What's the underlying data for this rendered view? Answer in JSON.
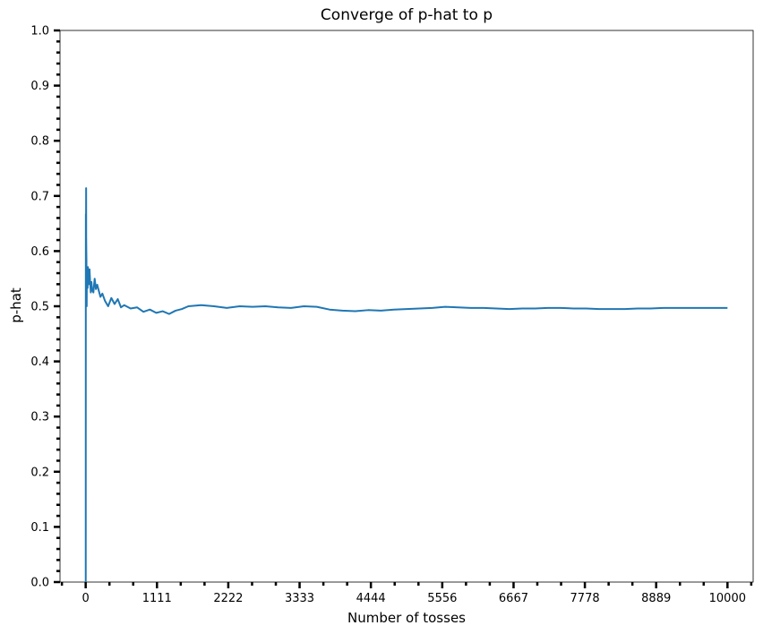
{
  "chart_data": {
    "type": "line",
    "title": "Converge of p-hat to p",
    "xlabel": "Number of tosses",
    "ylabel": "p-hat",
    "xlim": [
      -400,
      10400
    ],
    "ylim": [
      0.0,
      1.0
    ],
    "xticks": [
      0,
      1111,
      2222,
      3333,
      4444,
      5556,
      6667,
      7778,
      8889,
      10000
    ],
    "xtick_labels": [
      "0",
      "1111",
      "2222",
      "3333",
      "4444",
      "5556",
      "6667",
      "7778",
      "8889",
      "10000"
    ],
    "yticks": [
      0.0,
      0.1,
      0.2,
      0.3,
      0.4,
      0.5,
      0.6,
      0.7,
      0.8,
      0.9,
      1.0
    ],
    "ytick_labels": [
      "0.0",
      "0.1",
      "0.2",
      "0.3",
      "0.4",
      "0.5",
      "0.6",
      "0.7",
      "0.8",
      "0.9",
      "1.0"
    ],
    "grid": false,
    "color": "#1f77b4",
    "series": [
      {
        "x": [
          1,
          2,
          3,
          4,
          5,
          6,
          7,
          8,
          10,
          12,
          14,
          16,
          18,
          20,
          25,
          30,
          35,
          40,
          50,
          60,
          70,
          80,
          90,
          100,
          120,
          140,
          160,
          180,
          200,
          230,
          260,
          300,
          350,
          400,
          450,
          500,
          550,
          600,
          700,
          800,
          900,
          1000,
          1100,
          1200,
          1300,
          1400,
          1500,
          1600,
          1800,
          2000,
          2200,
          2400,
          2600,
          2800,
          3000,
          3200,
          3400,
          3600,
          3800,
          4000,
          4200,
          4400,
          4600,
          4800,
          5000,
          5200,
          5400,
          5600,
          5800,
          6000,
          6200,
          6400,
          6600,
          6800,
          7000,
          7200,
          7400,
          7600,
          7800,
          8000,
          8200,
          8400,
          8600,
          8800,
          9000,
          9200,
          9400,
          9600,
          9800,
          10000
        ],
        "y": [
          0.0,
          0.5,
          0.667,
          0.5,
          0.6,
          0.667,
          0.714,
          0.625,
          0.6,
          0.583,
          0.5,
          0.5,
          0.556,
          0.55,
          0.56,
          0.533,
          0.571,
          0.55,
          0.54,
          0.567,
          0.543,
          0.525,
          0.544,
          0.53,
          0.525,
          0.55,
          0.531,
          0.539,
          0.53,
          0.517,
          0.523,
          0.51,
          0.5,
          0.515,
          0.504,
          0.513,
          0.498,
          0.502,
          0.496,
          0.498,
          0.49,
          0.494,
          0.488,
          0.491,
          0.486,
          0.492,
          0.495,
          0.5,
          0.502,
          0.5,
          0.497,
          0.5,
          0.499,
          0.5,
          0.498,
          0.497,
          0.5,
          0.499,
          0.494,
          0.492,
          0.491,
          0.493,
          0.492,
          0.494,
          0.495,
          0.496,
          0.497,
          0.499,
          0.498,
          0.497,
          0.497,
          0.496,
          0.495,
          0.496,
          0.496,
          0.497,
          0.497,
          0.496,
          0.496,
          0.495,
          0.495,
          0.495,
          0.496,
          0.496,
          0.497,
          0.497,
          0.497,
          0.497,
          0.497,
          0.497
        ]
      }
    ]
  }
}
